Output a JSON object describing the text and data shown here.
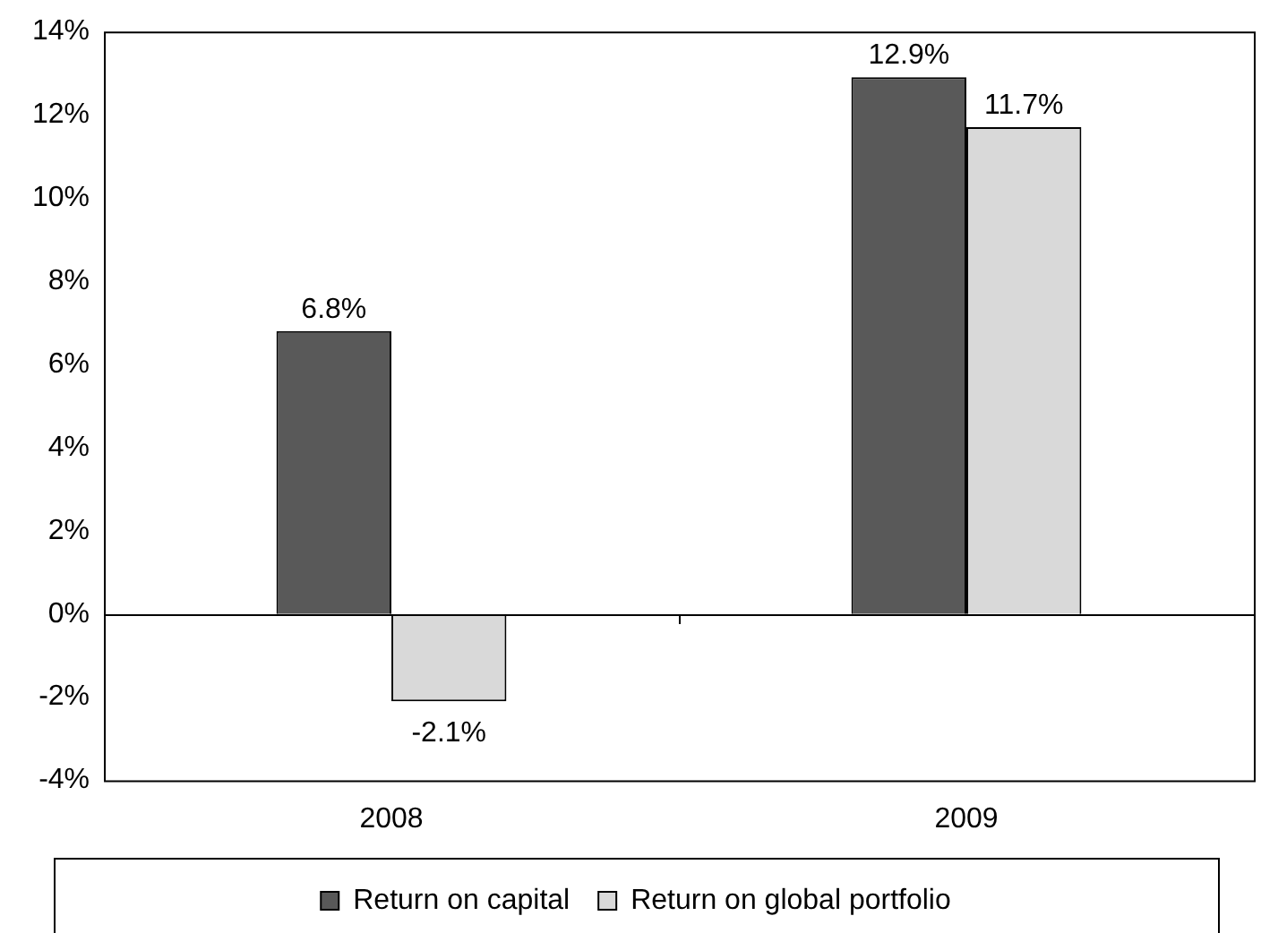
{
  "chart_data": {
    "type": "bar",
    "categories": [
      "2008",
      "2009"
    ],
    "series": [
      {
        "name": "Return on capital",
        "color": "#595959",
        "values": [
          6.8,
          12.9
        ],
        "value_labels": [
          "6.8%",
          "12.9%"
        ]
      },
      {
        "name": "Return on global portfolio",
        "color": "#d9d9d9",
        "values": [
          -2.1,
          11.7
        ],
        "value_labels": [
          "-2.1%",
          "11.7%"
        ]
      }
    ],
    "ylim": [
      -4,
      14
    ],
    "yticks": [
      {
        "value": -4,
        "label": "-4%"
      },
      {
        "value": -2,
        "label": "-2%"
      },
      {
        "value": 0,
        "label": "0%"
      },
      {
        "value": 2,
        "label": "2%"
      },
      {
        "value": 4,
        "label": "4%"
      },
      {
        "value": 6,
        "label": "6%"
      },
      {
        "value": 8,
        "label": "8%"
      },
      {
        "value": 10,
        "label": "10%"
      },
      {
        "value": 12,
        "label": "12%"
      },
      {
        "value": 14,
        "label": "14%"
      }
    ],
    "ref_lines": [
      {
        "axis": "y",
        "value": 0,
        "color": "#000000"
      }
    ],
    "grid": false,
    "legend": "bottom"
  }
}
